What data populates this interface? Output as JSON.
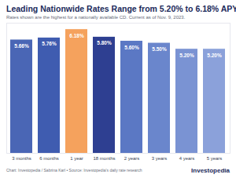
{
  "chart_data": {
    "type": "bar",
    "title": "Leading Nationwide Rates Range from 5.20% to 6.18% APY",
    "subtitle": "Rates shown are the highest for a nationally available CD. Current as of Nov. 9, 2023.",
    "categories": [
      "3 months",
      "6 months",
      "1 year",
      "18 months",
      "2 years",
      "3 years",
      "4 years",
      "5 years"
    ],
    "values": [
      5.66,
      5.76,
      6.18,
      5.8,
      5.6,
      5.5,
      5.2,
      5.2
    ],
    "value_labels": [
      "5.66%",
      "5.76%",
      "6.18%",
      "5.80%",
      "5.60%",
      "5.50%",
      "5.20%",
      "5.20%"
    ],
    "data_labels": true,
    "colors": [
      "#4a66b5",
      "#3f5cb0",
      "#f5a25d",
      "#2e3f91",
      "#5b78c4",
      "#6a86cc",
      "#7a93d3",
      "#8ba1da"
    ],
    "ylim": [
      0,
      6.5
    ],
    "tick_labels": "x",
    "caption": "Chart: Investopedia / Sabrina Karl • Source: Investopedia's daily rate research",
    "brand": "Investopedia"
  }
}
